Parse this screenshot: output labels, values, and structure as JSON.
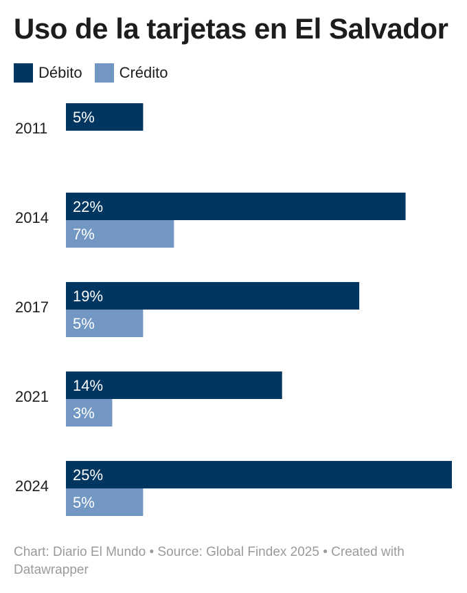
{
  "title": "Uso de la tarjetas en El Salvador",
  "legend": {
    "debit_label": "Débito",
    "credit_label": "Crédito"
  },
  "colors": {
    "debit": "#003660",
    "credit": "#7297c3",
    "bar_label_text": "#ffffff"
  },
  "footer": "Chart: Diario El Mundo • Source: Global Findex 2025 • Created with Datawrapper",
  "chart_data": {
    "type": "bar",
    "orientation": "horizontal",
    "categories": [
      "2011",
      "2014",
      "2017",
      "2021",
      "2024"
    ],
    "series": [
      {
        "name": "Débito",
        "values": [
          5,
          22,
          19,
          14,
          25
        ],
        "labels": [
          "5%",
          "22%",
          "19%",
          "14%",
          "25%"
        ]
      },
      {
        "name": "Crédito",
        "values": [
          null,
          7,
          5,
          3,
          5
        ],
        "labels": [
          "",
          "7%",
          "5%",
          "3%",
          "5%"
        ]
      }
    ],
    "xlim": [
      0,
      25
    ],
    "unit": "%",
    "legend": "top-left",
    "grid": false
  }
}
